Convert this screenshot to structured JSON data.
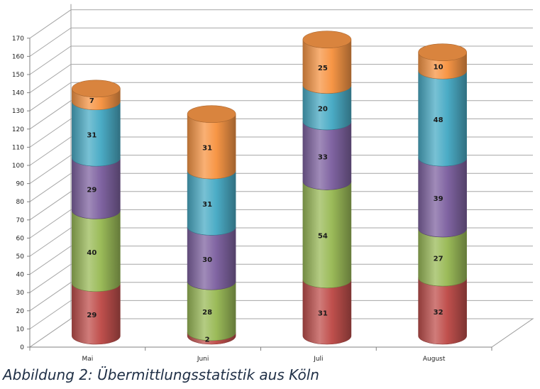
{
  "caption": "Abbildung 2: Übermittlungsstatistik aus Köln",
  "chart_data": {
    "type": "bar",
    "stacked": true,
    "style": "3d-cylinder",
    "categories": [
      "Mai",
      "Juni",
      "Juli",
      "August"
    ],
    "series": [
      {
        "values": [
          29,
          2,
          31,
          32
        ],
        "color": "#c0504d"
      },
      {
        "values": [
          40,
          28,
          54,
          27
        ],
        "color": "#9bbb59"
      },
      {
        "values": [
          29,
          30,
          33,
          39
        ],
        "color": "#8064a2"
      },
      {
        "values": [
          31,
          31,
          20,
          48
        ],
        "color": "#4bacc6"
      },
      {
        "values": [
          7,
          31,
          25,
          10
        ],
        "color": "#f79646"
      }
    ],
    "ylim": [
      0,
      170
    ],
    "ytick_step": 10,
    "grid": true,
    "legend": "none",
    "data_labels": true
  }
}
